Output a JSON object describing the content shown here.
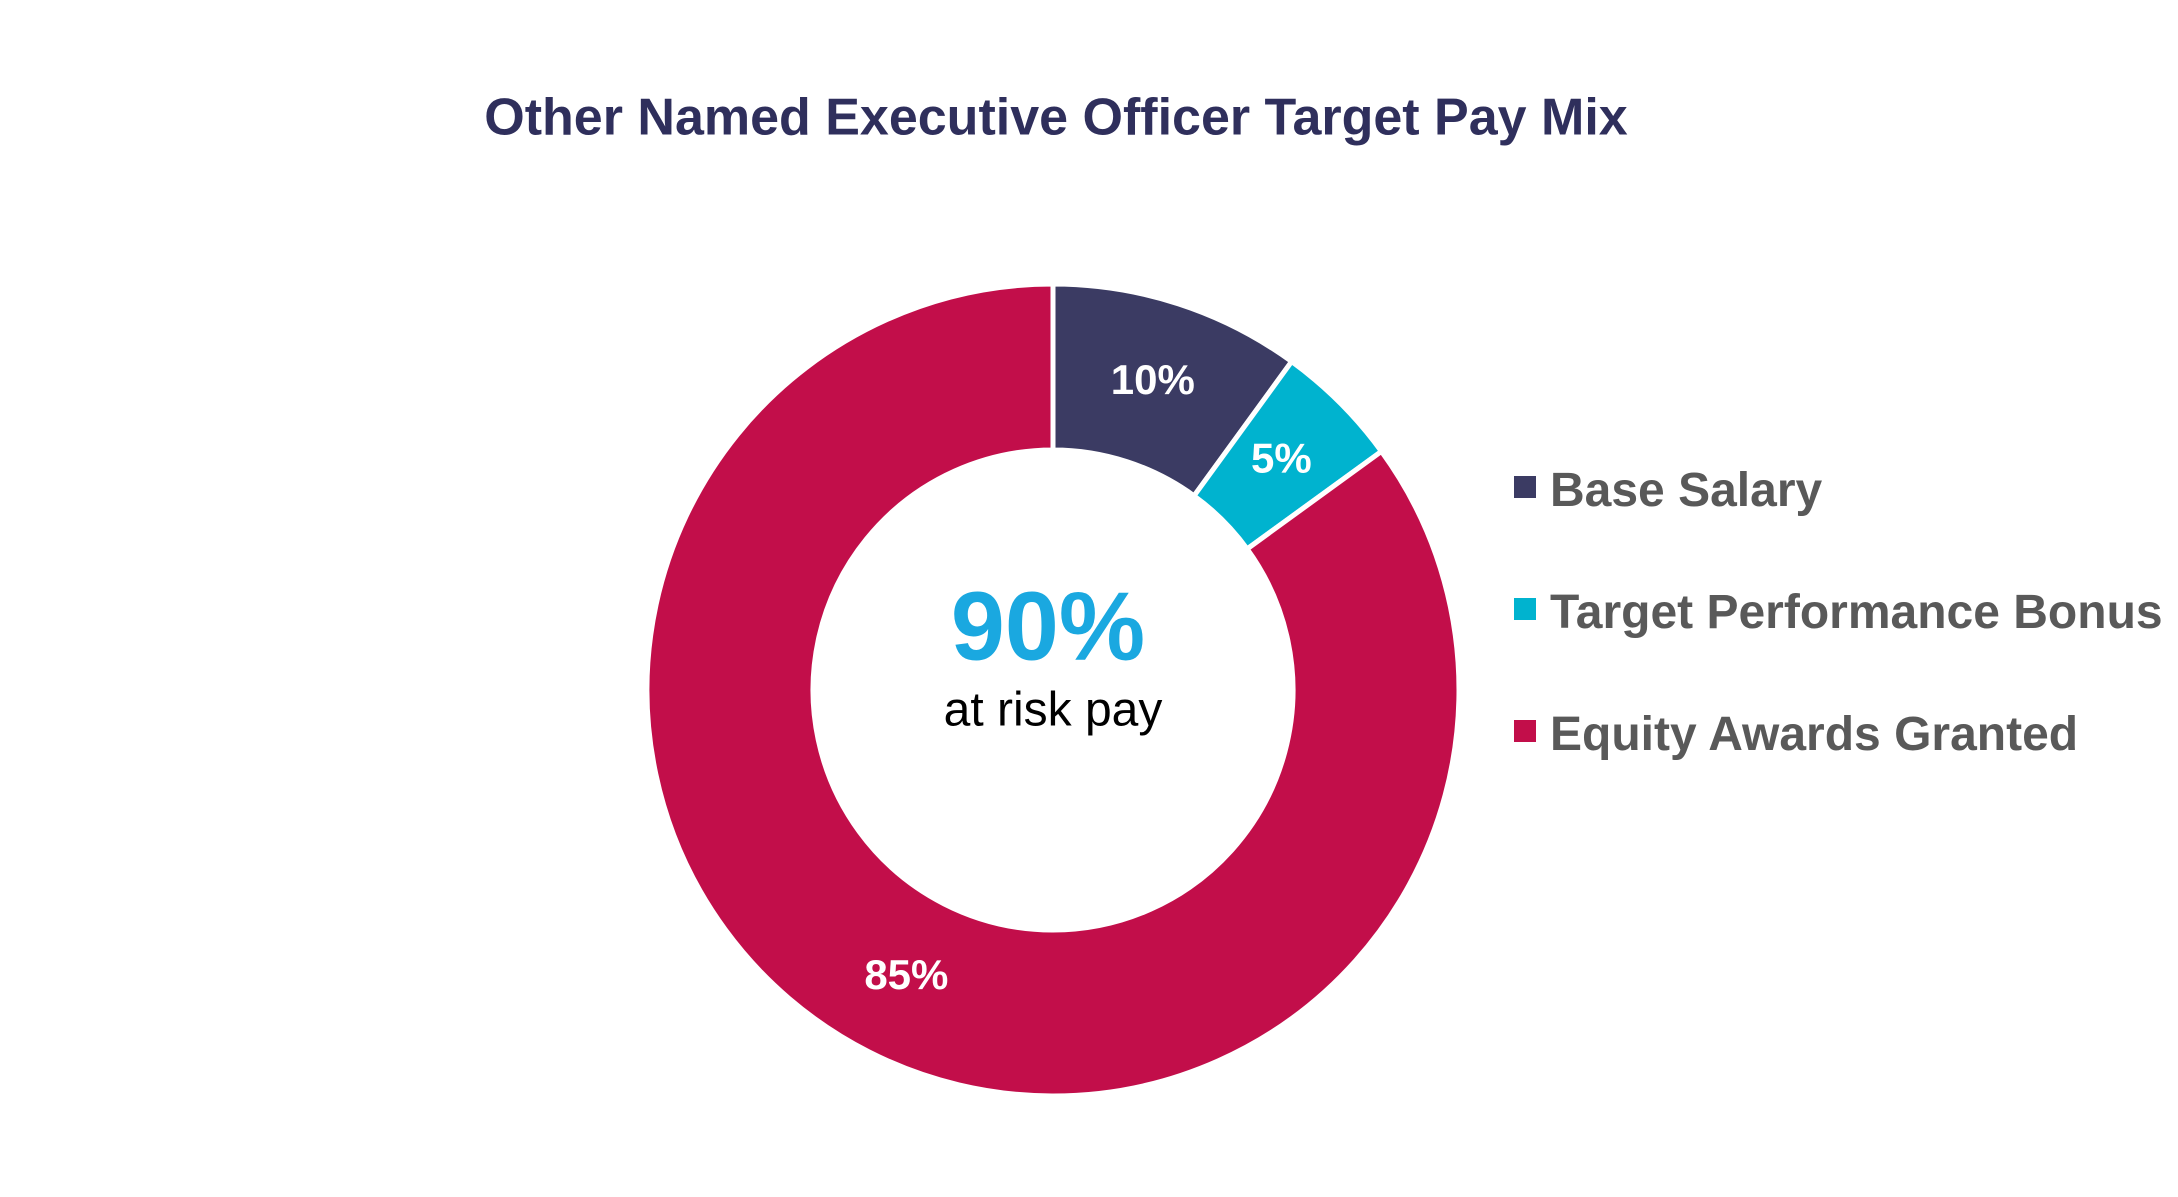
{
  "chart_data": {
    "type": "pie",
    "title": "Other Named Executive Officer Target Pay Mix",
    "categories": [
      "Base Salary",
      "Target Performance Bonus",
      "Equity Awards Granted"
    ],
    "values": [
      10,
      5,
      85
    ],
    "value_labels": [
      "10%",
      "5%",
      "85%"
    ],
    "colors": [
      "#3b3b63",
      "#00b3cf",
      "#c20e4a"
    ],
    "donut": true,
    "center_annotation": {
      "headline": "90%",
      "text": "at risk pay"
    },
    "legend": "right"
  }
}
